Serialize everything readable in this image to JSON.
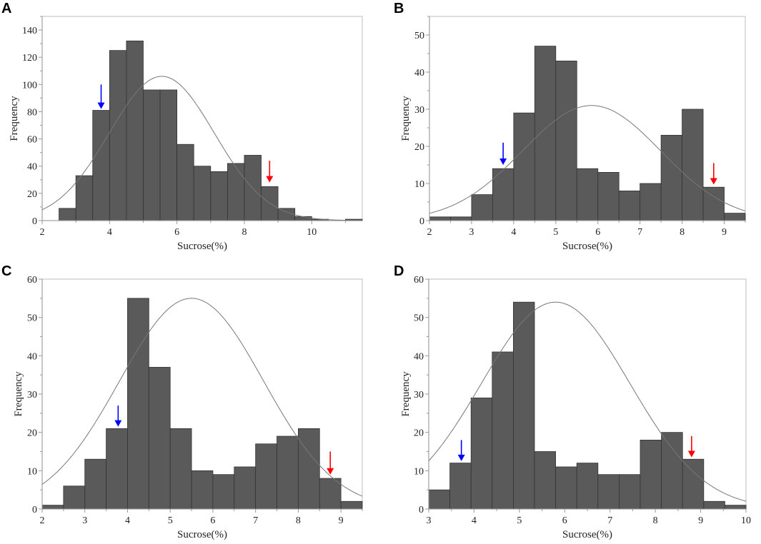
{
  "chart_data": [
    {
      "panel": "A",
      "type": "bar",
      "xlabel": "Sucrose(%)",
      "ylabel": "Frequency",
      "xlim": [
        2,
        11.5
      ],
      "ylim": [
        0,
        150
      ],
      "xticks": [
        2,
        4,
        6,
        8,
        10
      ],
      "yticks": [
        0,
        20,
        40,
        60,
        80,
        100,
        120,
        140
      ],
      "bin_start": 2.5,
      "bin_width": 0.5,
      "values": [
        9,
        33,
        81,
        125,
        132,
        96,
        96,
        56,
        40,
        36,
        42,
        48,
        25,
        9,
        3,
        1,
        0,
        1
      ],
      "normal_curve": {
        "mean": 5.55,
        "sd": 1.56,
        "peak": 106
      },
      "arrows": [
        {
          "color": "#0000ff",
          "x": 3.75,
          "from": 100,
          "to": 82
        },
        {
          "color": "#ff0000",
          "x": 8.75,
          "from": 44,
          "to": 28
        }
      ],
      "grid": false
    },
    {
      "panel": "B",
      "type": "bar",
      "xlabel": "Sucrose(%)",
      "ylabel": "Frequency",
      "xlim": [
        2,
        9.5
      ],
      "ylim": [
        0,
        55
      ],
      "xticks": [
        2,
        3,
        4,
        5,
        6,
        7,
        8,
        9
      ],
      "yticks": [
        0,
        10,
        20,
        30,
        40,
        50
      ],
      "bin_start": 2,
      "bin_width": 0.5,
      "values": [
        1,
        1,
        7,
        14,
        29,
        47,
        43,
        14,
        13,
        8,
        10,
        23,
        30,
        9,
        2
      ],
      "normal_curve": {
        "mean": 5.85,
        "sd": 1.64,
        "peak": 31
      },
      "arrows": [
        {
          "color": "#0000ff",
          "x": 3.75,
          "from": 21,
          "to": 15
        },
        {
          "color": "#ff0000",
          "x": 8.75,
          "from": 15.5,
          "to": 9.7
        }
      ],
      "grid": false
    },
    {
      "panel": "C",
      "type": "bar",
      "xlabel": "Sucrose(%)",
      "ylabel": "Frequency",
      "xlim": [
        2,
        9.5
      ],
      "ylim": [
        0,
        60
      ],
      "xticks": [
        2,
        3,
        4,
        5,
        6,
        7,
        8,
        9
      ],
      "yticks": [
        0,
        10,
        20,
        30,
        40,
        50,
        60
      ],
      "bin_start": 2,
      "bin_width": 0.5,
      "values": [
        1,
        6,
        13,
        21,
        55,
        37,
        21,
        10,
        9,
        11,
        17,
        19,
        21,
        8,
        2
      ],
      "normal_curve": {
        "mean": 5.5,
        "sd": 1.69,
        "peak": 55
      },
      "arrows": [
        {
          "color": "#0000ff",
          "x": 3.78,
          "from": 27,
          "to": 21.5
        },
        {
          "color": "#ff0000",
          "x": 8.75,
          "from": 15,
          "to": 9
        }
      ],
      "grid": false
    },
    {
      "panel": "D",
      "type": "bar",
      "xlabel": "Sucrose(%)",
      "ylabel": "Frequency",
      "xlim": [
        3,
        10
      ],
      "ylim": [
        0,
        60
      ],
      "xticks": [
        3,
        4,
        5,
        6,
        7,
        8,
        9,
        10
      ],
      "yticks": [
        0,
        10,
        20,
        30,
        40,
        50,
        60
      ],
      "bin_start": 3,
      "bin_width": 0.4667,
      "values": [
        5,
        12,
        29,
        41,
        54,
        15,
        11,
        12,
        9,
        9,
        18,
        20,
        13,
        2,
        1
      ],
      "normal_curve": {
        "mean": 5.8,
        "sd": 1.64,
        "peak": 54
      },
      "arrows": [
        {
          "color": "#0000ff",
          "x": 3.72,
          "from": 18,
          "to": 12.5
        },
        {
          "color": "#ff0000",
          "x": 8.8,
          "from": 19,
          "to": 13.5
        }
      ],
      "grid": false
    }
  ]
}
